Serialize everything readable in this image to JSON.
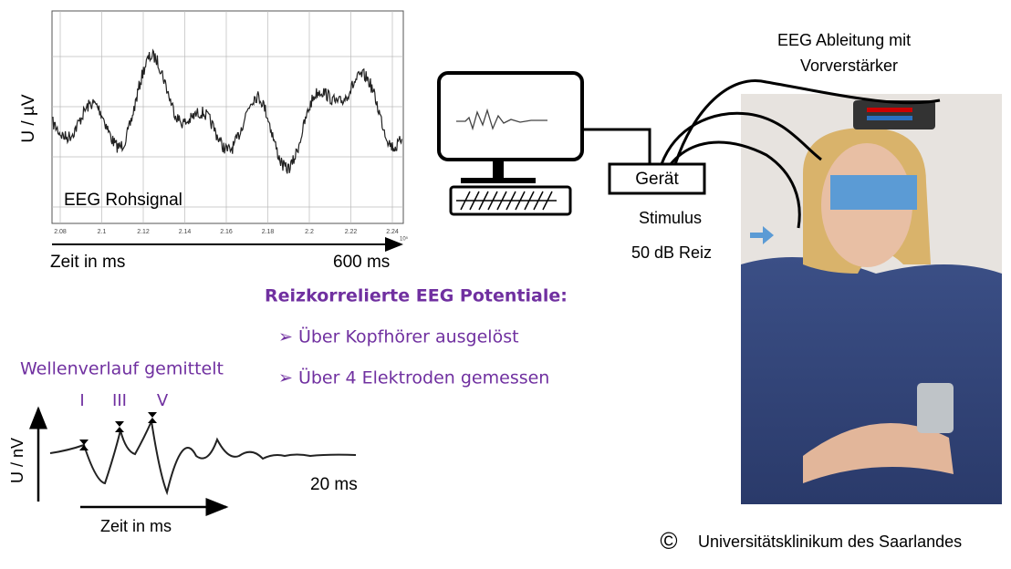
{
  "eeg_raw": {
    "y_label": "U / µV",
    "label": "EEG Rohsignal",
    "x_ticks": [
      "2.08",
      "2.1",
      "2.12",
      "2.14",
      "2.16",
      "2.18",
      "2.2",
      "2.22",
      "2.24"
    ],
    "exponent": "10⁵",
    "time_label": "Zeit in ms",
    "duration": "600 ms"
  },
  "amplifier": {
    "line1": "EEG Ableitung mit",
    "line2": "Vorverstärker"
  },
  "device": {
    "label": "Gerät",
    "stimulus": "Stimulus",
    "stimulus_level": "50 dB Reiz"
  },
  "evoked": {
    "heading": "Reizkorrelierte EEG Potentiale:",
    "bullets": [
      "➢ Über Kopfhörer ausgelöst",
      "➢ Über 4 Elektroden gemessen"
    ]
  },
  "averaged": {
    "title": "Wellenverlauf gemittelt",
    "peaks": [
      "I",
      "III",
      "V"
    ],
    "y_label": "U / nV",
    "x_label": "Zeit in ms",
    "duration": "20 ms"
  },
  "copyright": {
    "symbol": "©",
    "text": "Universitätsklinikum des Saarlandes"
  }
}
